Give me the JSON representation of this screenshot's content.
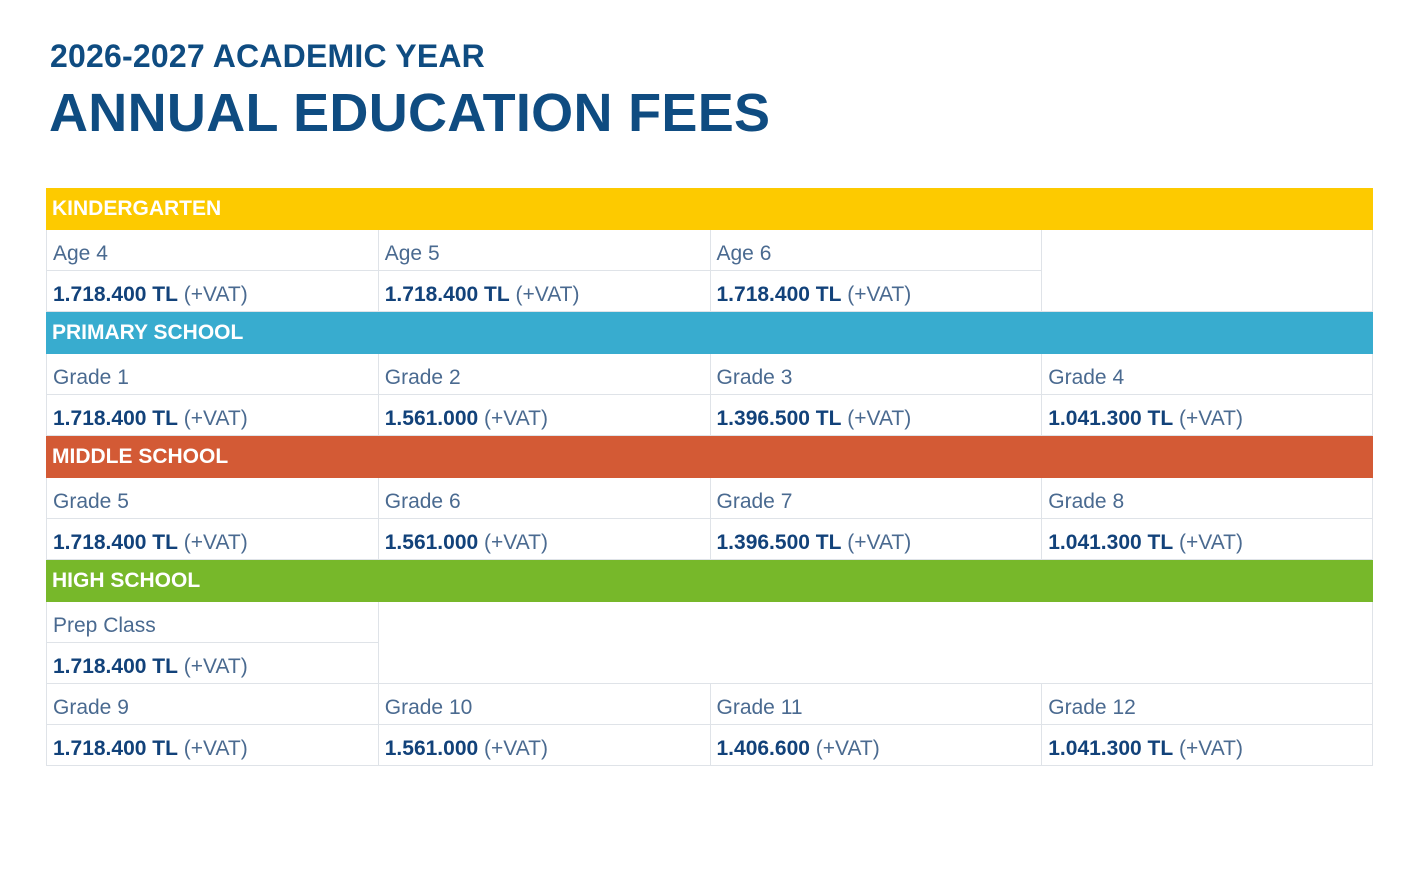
{
  "header": {
    "subtitle": "2026-2027 ACADEMIC YEAR",
    "title": "ANNUAL EDUCATION FEES"
  },
  "colors": {
    "kindergarten": "#fdca00",
    "primary": "#38accf",
    "middle": "#d35a35",
    "high": "#77b82a",
    "text": "#0f4c81"
  },
  "sections": {
    "kindergarten": {
      "name": "KINDERGARTEN",
      "items": [
        {
          "label": "Age 4",
          "amount": "1.718.400 TL",
          "vat": "(+VAT)"
        },
        {
          "label": "Age 5",
          "amount": "1.718.400 TL",
          "vat": "(+VAT)"
        },
        {
          "label": "Age 6",
          "amount": "1.718.400 TL",
          "vat": "(+VAT)"
        }
      ]
    },
    "primary": {
      "name": "PRIMARY SCHOOL",
      "items": [
        {
          "label": "Grade 1",
          "amount": "1.718.400 TL",
          "vat": "(+VAT)"
        },
        {
          "label": "Grade 2",
          "amount": "1.561.000",
          "vat": "(+VAT)"
        },
        {
          "label": "Grade 3",
          "amount": "1.396.500 TL",
          "vat": "(+VAT)"
        },
        {
          "label": "Grade 4",
          "amount": "1.041.300 TL",
          "vat": "(+VAT)"
        }
      ]
    },
    "middle": {
      "name": "MIDDLE SCHOOL",
      "items": [
        {
          "label": "Grade 5",
          "amount": "1.718.400 TL",
          "vat": "(+VAT)"
        },
        {
          "label": "Grade 6",
          "amount": "1.561.000",
          "vat": "(+VAT)"
        },
        {
          "label": "Grade 7",
          "amount": "1.396.500 TL",
          "vat": "(+VAT)"
        },
        {
          "label": "Grade 8",
          "amount": "1.041.300 TL",
          "vat": "(+VAT)"
        }
      ]
    },
    "high": {
      "name": "HIGH SCHOOL",
      "prep": {
        "label": "Prep Class",
        "amount": "1.718.400 TL",
        "vat": "(+VAT)"
      },
      "items": [
        {
          "label": "Grade 9",
          "amount": "1.718.400 TL",
          "vat": "(+VAT)"
        },
        {
          "label": "Grade 10",
          "amount": "1.561.000",
          "vat": "(+VAT)"
        },
        {
          "label": "Grade 11",
          "amount": "1.406.600",
          "vat": "(+VAT)"
        },
        {
          "label": "Grade 12",
          "amount": "1.041.300 TL",
          "vat": "(+VAT)"
        }
      ]
    }
  }
}
